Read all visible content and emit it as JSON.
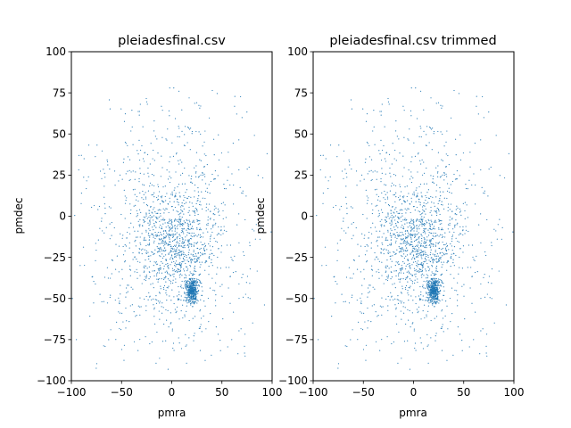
{
  "chart_data": [
    {
      "type": "scatter",
      "title": "pleiadesfinal.csv",
      "xlabel": "pmra",
      "ylabel": "pmdec",
      "xlim": [
        -100,
        100
      ],
      "ylim": [
        -100,
        100
      ],
      "xticks": [
        -100,
        -50,
        0,
        50,
        100
      ],
      "yticks": [
        -100,
        -75,
        -50,
        -25,
        0,
        25,
        50,
        75,
        100
      ],
      "marker_color": "#1f77b4",
      "grid": false,
      "point_count_approx": 2000,
      "clusters": [
        {
          "center": [
            20,
            -45
          ],
          "spread": [
            3,
            4
          ],
          "note": "dense Pleiades cluster"
        },
        {
          "center": [
            5,
            -15
          ],
          "spread": [
            20,
            16
          ],
          "note": "field overdensity"
        }
      ],
      "background_range": {
        "pmra": [
          -100,
          100
        ],
        "pmdec": [
          -100,
          80
        ]
      },
      "notable_points": [
        [
          -2,
          78
        ],
        [
          2,
          78
        ],
        [
          -90,
          37
        ],
        [
          -95,
          -75
        ],
        [
          95,
          38
        ]
      ]
    },
    {
      "type": "scatter",
      "title": "pleiadesfinal.csv trimmed",
      "xlabel": "pmra",
      "ylabel": "pmdec",
      "xlim": [
        -100,
        100
      ],
      "ylim": [
        -100,
        100
      ],
      "xticks": [
        -100,
        -50,
        0,
        50,
        100
      ],
      "yticks": [
        -100,
        -75,
        -50,
        -25,
        0,
        25,
        50,
        75,
        100
      ],
      "marker_color": "#1f77b4",
      "grid": false,
      "point_count_approx": 2000,
      "clusters": [
        {
          "center": [
            20,
            -45
          ],
          "spread": [
            3,
            4
          ],
          "note": "dense Pleiades cluster"
        },
        {
          "center": [
            5,
            -15
          ],
          "spread": [
            20,
            16
          ],
          "note": "field overdensity"
        }
      ],
      "background_range": {
        "pmra": [
          -100,
          100
        ],
        "pmdec": [
          -100,
          80
        ]
      },
      "notable_points": [
        [
          -2,
          78
        ],
        [
          2,
          78
        ],
        [
          -90,
          37
        ],
        [
          -95,
          -75
        ],
        [
          95,
          38
        ]
      ]
    }
  ]
}
